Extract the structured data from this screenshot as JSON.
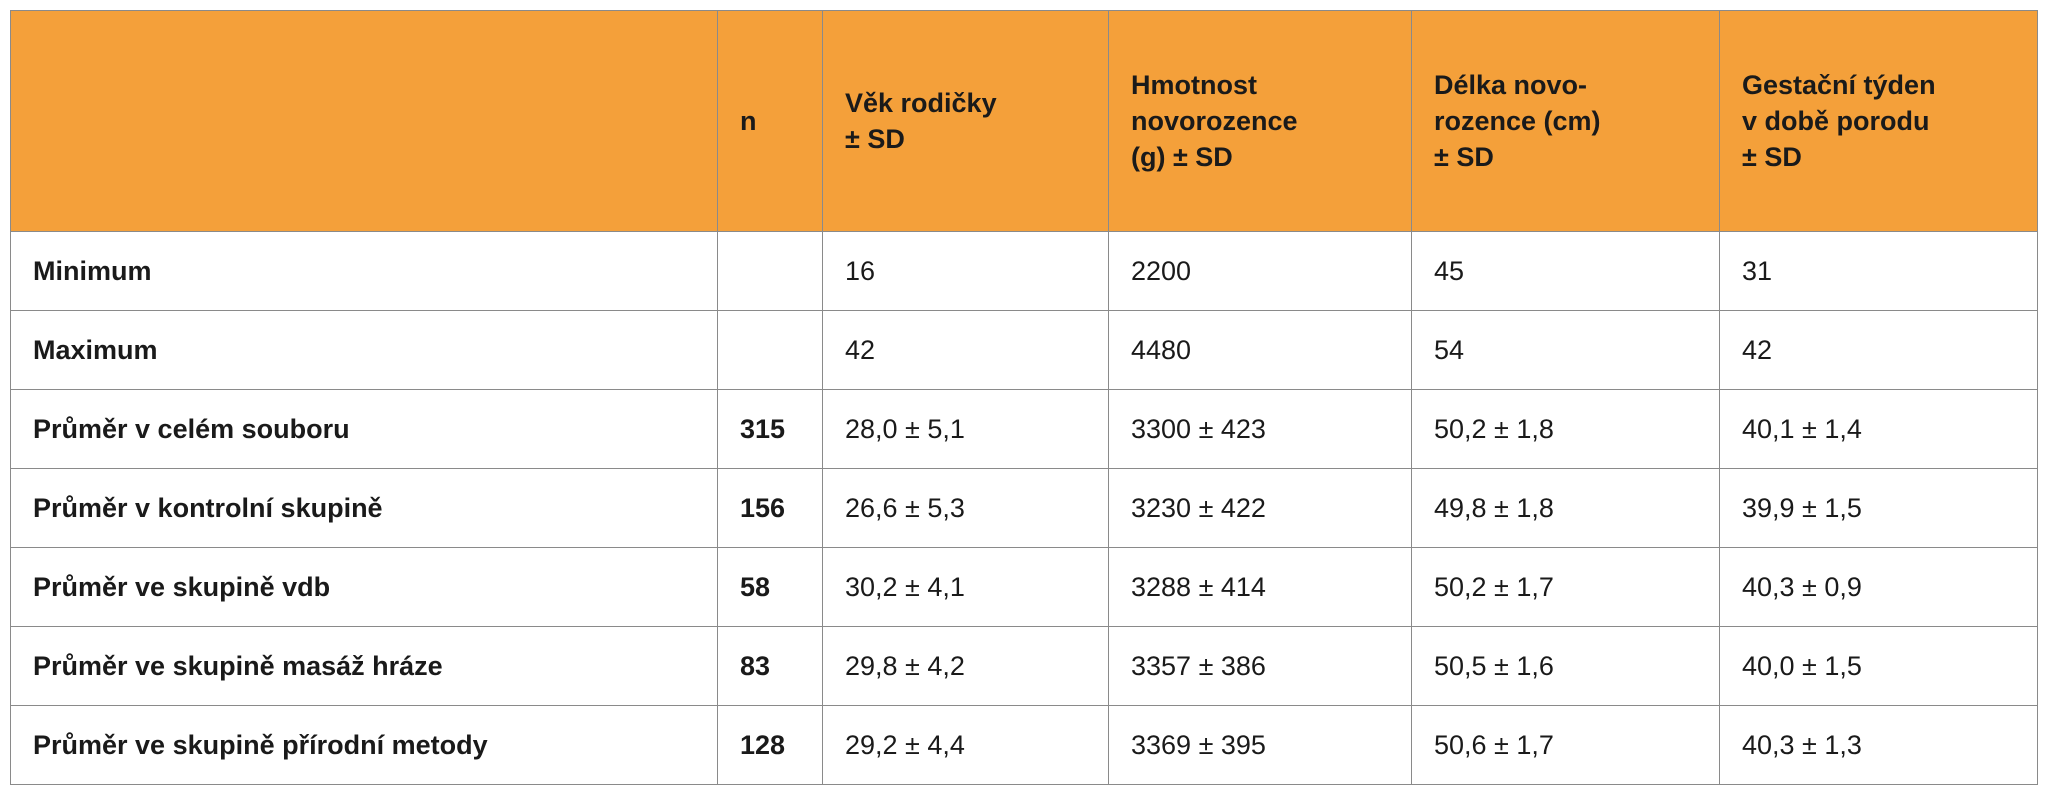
{
  "table": {
    "header": [
      null,
      [
        "n"
      ],
      [
        "Věk rodičky",
        "± SD"
      ],
      [
        "Hmotnost",
        "novorozence",
        "(g)   ± SD"
      ],
      [
        "Délka novo-",
        "rozence (cm)",
        "± SD"
      ],
      [
        "Gestační týden",
        "v době porodu",
        "± SD"
      ]
    ],
    "rows": [
      [
        "Minimum",
        null,
        "16",
        "2200",
        "45",
        "31"
      ],
      [
        "Maximum",
        null,
        "42",
        "4480",
        "54",
        "42"
      ],
      [
        "Průměr v celém souboru",
        "315",
        "28,0 ± 5,1",
        "3300 ± 423",
        "50,2 ± 1,8",
        "40,1 ± 1,4"
      ],
      [
        "Průměr v kontrolní skupině",
        "156",
        "26,6 ± 5,3",
        "3230 ± 422",
        "49,8 ± 1,8",
        "39,9 ± 1,5"
      ],
      [
        "Průměr ve skupině vdb",
        "58",
        "30,2 ± 4,1",
        "3288 ± 414",
        "50,2 ± 1,7",
        "40,3 ± 0,9"
      ],
      [
        "Průměr ve skupině masáž hráze",
        "83",
        "29,8 ± 4,2",
        "3357 ± 386",
        "50,5 ± 1,6",
        "40,0 ± 1,5"
      ],
      [
        "Průměr ve skupině přírodní metody",
        "128",
        "29,2 ± 4,4",
        "3369 ± 395",
        "50,6 ± 1,7",
        "40,3 ± 1,3"
      ]
    ]
  }
}
